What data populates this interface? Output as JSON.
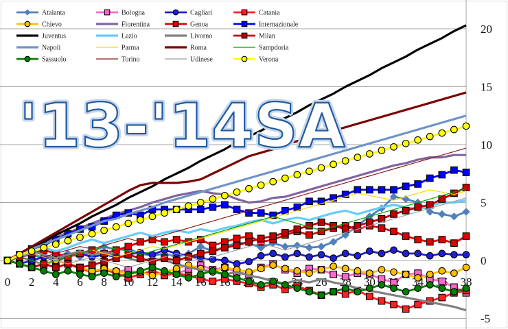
{
  "chart_data": {
    "type": "line",
    "title": "'13-'14SA",
    "xlabel": "",
    "ylabel": "",
    "xlim": [
      0,
      38
    ],
    "ylim": [
      -5,
      22
    ],
    "x_ticks": [
      0,
      2,
      4,
      6,
      8,
      10,
      12,
      14,
      16,
      18,
      20,
      22,
      24,
      26,
      28,
      30,
      32,
      34,
      36,
      38
    ],
    "y_ticks": [
      -5,
      0,
      5,
      10,
      15,
      20
    ],
    "grid": "horizontal",
    "legend_position": "top-left",
    "x": [
      0,
      1,
      2,
      3,
      4,
      5,
      6,
      7,
      8,
      9,
      10,
      11,
      12,
      13,
      14,
      15,
      16,
      17,
      18,
      19,
      20,
      21,
      22,
      23,
      24,
      25,
      26,
      27,
      28,
      29,
      30,
      31,
      32,
      33,
      34,
      35,
      36,
      37,
      38
    ],
    "series": [
      {
        "name": "Atalanta",
        "color": "#4f81bd",
        "marker": "diamond",
        "values": [
          0,
          0.3,
          0.5,
          0.2,
          0.4,
          0.6,
          0.3,
          0.8,
          1.2,
          0.9,
          1,
          0.6,
          0.4,
          0.6,
          0.3,
          0.6,
          1.2,
          0.8,
          1.2,
          1.5,
          1.5,
          1.1,
          1.5,
          1.2,
          1.3,
          1.1,
          1.2,
          1.6,
          2.2,
          3,
          3.8,
          4.5,
          5.5,
          5.3,
          5,
          4.2,
          4,
          3.8,
          4.2
        ]
      },
      {
        "name": "Bologna",
        "color": "#ff66cc",
        "marker": "square",
        "values": [
          0,
          0.3,
          0,
          -0.4,
          0,
          -0.3,
          -0.6,
          -1,
          -0.7,
          -1,
          -0.8,
          -1.2,
          -0.9,
          -1.2,
          -1.1,
          -0.8,
          -0.4,
          -0.8,
          -0.6,
          -1,
          -1.2,
          -0.6,
          -0.3,
          -0.8,
          -1.1,
          -0.7,
          -0.8,
          -1.2,
          -1.4,
          -1.1,
          -1.2,
          -1.6,
          -1.9,
          -1.2,
          -1.1,
          -1.6,
          -1.8,
          -2.3,
          -2.8
        ]
      },
      {
        "name": "Cagliari",
        "color": "#1f1fd4",
        "marker": "circle",
        "values": [
          0,
          -0.3,
          0,
          0.3,
          0,
          0.3,
          0.6,
          0.3,
          0.5,
          0.3,
          0.5,
          0.7,
          0.5,
          0.9,
          0.6,
          0.4,
          0.2,
          0.1,
          0,
          -0.3,
          -0.1,
          0.4,
          0.6,
          0.3,
          0.6,
          0.3,
          0.5,
          0.2,
          0.6,
          0.4,
          0.8,
          0.6,
          0.9,
          0.6,
          0.6,
          0.4,
          0.6,
          0.5,
          0.5
        ]
      },
      {
        "name": "Catania",
        "color": "#ff2020",
        "marker": "square",
        "values": [
          0,
          -0.3,
          -0.6,
          -0.3,
          -0.6,
          -0.3,
          -0.7,
          -1,
          -0.8,
          -1.1,
          -1.5,
          -1.2,
          -0.9,
          -1.3,
          -1.1,
          -1.3,
          -1.6,
          -1.8,
          -1.6,
          -1.8,
          -2,
          -2.3,
          -2.1,
          -2.5,
          -2.2,
          -2.6,
          -3,
          -2.7,
          -2.9,
          -2.6,
          -3.1,
          -3.5,
          -3.8,
          -4.2,
          -3.8,
          -3.5,
          -3.2,
          -2.8,
          -2.6
        ]
      },
      {
        "name": "Chievo",
        "color": "#ffc000",
        "marker": "circle",
        "values": [
          0,
          -0.3,
          -0.6,
          -0.3,
          0,
          -0.3,
          -0.6,
          -0.9,
          -0.7,
          -0.9,
          -1.2,
          -1,
          -1.3,
          -1,
          -0.7,
          -0.4,
          -0.7,
          -1,
          -0.6,
          -0.8,
          -1,
          -0.7,
          -0.4,
          -0.7,
          -0.9,
          -1.1,
          -0.8,
          -0.5,
          -0.7,
          -0.9,
          -1.1,
          -0.8,
          -1,
          -1.2,
          -1.5,
          -1.2,
          -0.9,
          -1.1,
          -0.6
        ]
      },
      {
        "name": "Fiorentina",
        "color": "#8064a2",
        "marker": "none",
        "values": [
          0,
          0.5,
          1,
          1.5,
          2,
          2.4,
          2.8,
          3.2,
          3.6,
          4,
          4.3,
          4.6,
          5,
          5.3,
          5.6,
          5.8,
          6,
          5.8,
          5.7,
          5.3,
          5,
          5.1,
          5.4,
          5.5,
          5.8,
          6.1,
          6.4,
          6.7,
          7,
          7.3,
          7.6,
          7.9,
          8.2,
          8.4,
          8.7,
          8.9,
          8.9,
          9.1,
          9.1
        ]
      },
      {
        "name": "Genoa",
        "color": "#e00000",
        "marker": "square",
        "values": [
          0,
          0.3,
          0.6,
          0.9,
          0.6,
          0.3,
          0.6,
          0.9,
          0.6,
          0.9,
          1.2,
          1.6,
          1.8,
          1.6,
          1.8,
          1.6,
          1.8,
          1.3,
          1.6,
          1.9,
          2.1,
          1.6,
          1.8,
          2.2,
          2.5,
          2.2,
          2.5,
          2.8,
          3,
          2.7,
          3,
          2.8,
          2.5,
          2.1,
          1.8,
          1.6,
          1.8,
          1.5,
          2.1
        ]
      },
      {
        "name": "Internazionale",
        "color": "#0000ff",
        "marker": "square",
        "values": [
          0,
          0.5,
          1,
          1.3,
          1.8,
          2.3,
          2.7,
          2.9,
          3.4,
          3.9,
          4.1,
          3.9,
          4.4,
          4.4,
          4.4,
          4.4,
          4.4,
          4.6,
          4.8,
          4.4,
          4.1,
          4.1,
          3.9,
          4.3,
          4.6,
          5.1,
          5.1,
          5.4,
          5.7,
          6.1,
          6.1,
          6.1,
          6.1,
          6.4,
          6.6,
          7.1,
          7.4,
          7.8,
          7.6
        ]
      },
      {
        "name": "Juventus",
        "color": "#000000",
        "marker": "none",
        "values": [
          0,
          0.5,
          1.1,
          1.6,
          2.2,
          2.7,
          3.2,
          3.8,
          4.3,
          4.8,
          5.4,
          5.9,
          6.4,
          7,
          7.5,
          8,
          8.6,
          9.1,
          9.6,
          10.2,
          10.7,
          11.2,
          11.8,
          12.3,
          12.8,
          13.4,
          13.9,
          14.4,
          15,
          15.5,
          16,
          16.6,
          17.1,
          17.6,
          18.2,
          18.7,
          19.2,
          19.8,
          20.3
        ]
      },
      {
        "name": "Lazio",
        "color": "#66ccff",
        "marker": "none",
        "values": [
          0,
          0.4,
          0.8,
          1.1,
          0.8,
          1.1,
          1.5,
          1.8,
          1.5,
          1.8,
          2.1,
          2.4,
          2.1,
          2.4,
          2.6,
          2.4,
          2.7,
          2.5,
          2.8,
          3,
          3.3,
          3.5,
          3.2,
          3.5,
          3.7,
          3.5,
          3.8,
          4.1,
          4.3,
          4,
          4.3,
          4.6,
          4.8,
          4.6,
          4.4,
          4.7,
          5,
          5,
          5.2
        ]
      },
      {
        "name": "Livorno",
        "color": "#808080",
        "marker": "none",
        "values": [
          0,
          0.5,
          0.8,
          0.5,
          0.2,
          0.5,
          0.8,
          0.5,
          0.7,
          0.5,
          0.2,
          -0.1,
          0.2,
          0,
          -0.3,
          -0.6,
          -0.8,
          -1,
          -1.2,
          -1,
          -1.3,
          -1.5,
          -1.8,
          -2,
          -1.7,
          -1.9,
          -1.6,
          -1.9,
          -2.1,
          -2.4,
          -2.6,
          -2.8,
          -3,
          -3.2,
          -3.4,
          -3.6,
          -3.8,
          -4,
          -4.3
        ]
      },
      {
        "name": "Milan",
        "color": "#c00000",
        "marker": "square",
        "values": [
          0,
          -0.3,
          -0.6,
          -0.3,
          -0.6,
          -0.3,
          -0.6,
          -0.4,
          -0.1,
          0.2,
          0.5,
          0.2,
          -0.1,
          0.2,
          0,
          0.3,
          0.6,
          0.8,
          1.1,
          1.3,
          1.6,
          1.9,
          2.1,
          2.4,
          2.7,
          3,
          3.3,
          3,
          2.7,
          3,
          3.3,
          3.6,
          4,
          4.3,
          4.6,
          4.8,
          5.3,
          5.8,
          6.3
        ]
      },
      {
        "name": "Napoli",
        "color": "#7094c8",
        "marker": "none",
        "values": [
          0,
          0.5,
          1,
          1.4,
          1.8,
          2.2,
          2.6,
          3,
          3.4,
          3.6,
          4,
          4.3,
          4.6,
          5,
          5.3,
          5.6,
          5.9,
          6.2,
          6.5,
          6.8,
          7.1,
          7.4,
          7.7,
          8,
          8.3,
          8.6,
          8.9,
          9.2,
          9.5,
          9.8,
          10.1,
          10.4,
          10.7,
          11,
          11.3,
          11.6,
          11.9,
          12.2,
          12.5
        ]
      },
      {
        "name": "Parma",
        "color": "#ffd700",
        "marker": "none",
        "values": [
          0,
          0.3,
          0.6,
          0.3,
          0,
          0.3,
          0.6,
          0.9,
          0.6,
          0.3,
          0.6,
          0.9,
          1.2,
          1,
          1.3,
          1.6,
          1.9,
          2.2,
          2.5,
          2.8,
          3.1,
          3.4,
          3.7,
          4,
          4.3,
          4.6,
          4.9,
          5.2,
          5.5,
          5.8,
          5.6,
          5.4,
          5.2,
          5.5,
          5.8,
          6.1,
          5.9,
          5.7,
          6
        ]
      },
      {
        "name": "Roma",
        "color": "#7b0000",
        "marker": "none",
        "values": [
          0,
          0.6,
          1.2,
          1.8,
          2.4,
          3,
          3.6,
          4.2,
          4.8,
          5.4,
          6,
          6.5,
          6.7,
          6.7,
          6.7,
          6.8,
          7,
          7.5,
          8,
          8.5,
          9,
          9.3,
          9.6,
          10,
          10.3,
          10.6,
          10.9,
          11.2,
          11.5,
          11.8,
          12.1,
          12.4,
          12.7,
          13,
          13.3,
          13.6,
          13.9,
          14.2,
          14.5
        ]
      },
      {
        "name": "Sampdoria",
        "color": "#00a000",
        "marker": "none",
        "values": [
          0,
          0.3,
          0,
          -0.3,
          0,
          0.3,
          0.6,
          0.9,
          1.2,
          1,
          0.8,
          0.5,
          0.8,
          1.1,
          1.4,
          1.7,
          2,
          2.3,
          2.6,
          2.9,
          3.2,
          3.5,
          3.8,
          3.5,
          3.2,
          2.9,
          2.6,
          2.9,
          3.2,
          3.5,
          3.8,
          4.1,
          4.4,
          4.7,
          5,
          5.3,
          5.6,
          5.9,
          6.2
        ]
      },
      {
        "name": "Sassuolo",
        "color": "#008000",
        "marker": "circle",
        "values": [
          0,
          -0.3,
          -0.6,
          -0.9,
          -1.2,
          -0.9,
          -1.2,
          -1.4,
          -1.1,
          -1.4,
          -1.2,
          -0.9,
          -0.6,
          -0.9,
          -1.2,
          -1.5,
          -1.2,
          -0.9,
          -1.2,
          -1.5,
          -1.8,
          -2.1,
          -1.8,
          -2.1,
          -2.4,
          -2.7,
          -3,
          -2.7,
          -2.4,
          -2.7,
          -2.4,
          -2.1,
          -2.4,
          -2.7,
          -2.4,
          -2.1,
          -2.4,
          -2.7,
          -2.4
        ]
      },
      {
        "name": "Torino",
        "color": "#8b1a1a",
        "marker": "none",
        "values": [
          0,
          0.3,
          0.6,
          0.3,
          0.6,
          0.9,
          1.2,
          1,
          1.3,
          1.6,
          1.9,
          1.6,
          1.9,
          2.2,
          2.5,
          2.8,
          3.1,
          3.4,
          3.7,
          4,
          4.3,
          4.6,
          4.9,
          5.2,
          5.5,
          5.8,
          6.1,
          6.4,
          6.7,
          7,
          7.3,
          7.6,
          7.9,
          8.2,
          8.5,
          8.8,
          9.1,
          9.4,
          9.7
        ]
      },
      {
        "name": "Udinese",
        "color": "#a0a0a0",
        "marker": "none",
        "values": [
          0,
          0.3,
          0.6,
          0.3,
          0,
          -0.3,
          0,
          0.3,
          0,
          -0.3,
          -0.6,
          -0.3,
          0,
          0.3,
          0.6,
          0.3,
          0,
          0.3,
          0.6,
          0.9,
          1.2,
          1.5,
          1.2,
          0.9,
          1.2,
          1.5,
          1.8,
          2.1,
          2.4,
          2.7,
          3,
          3.3,
          3.6,
          3.9,
          4.2,
          4.5,
          4.8,
          5.1,
          5.4
        ]
      },
      {
        "name": "Verona",
        "color": "#ffff00",
        "marker": "circle",
        "values": [
          0,
          0.5,
          0.8,
          1.1,
          1.4,
          1.7,
          2,
          2.3,
          2.6,
          2.9,
          3.2,
          3.5,
          3.8,
          4.1,
          4.4,
          4.7,
          5,
          5.3,
          5.6,
          5.9,
          6.2,
          6.5,
          6.8,
          7.1,
          7.4,
          7.7,
          8,
          8.3,
          8.6,
          8.9,
          9.2,
          9.5,
          9.8,
          10.1,
          10.4,
          10.7,
          11,
          11.3,
          11.6
        ]
      }
    ]
  }
}
